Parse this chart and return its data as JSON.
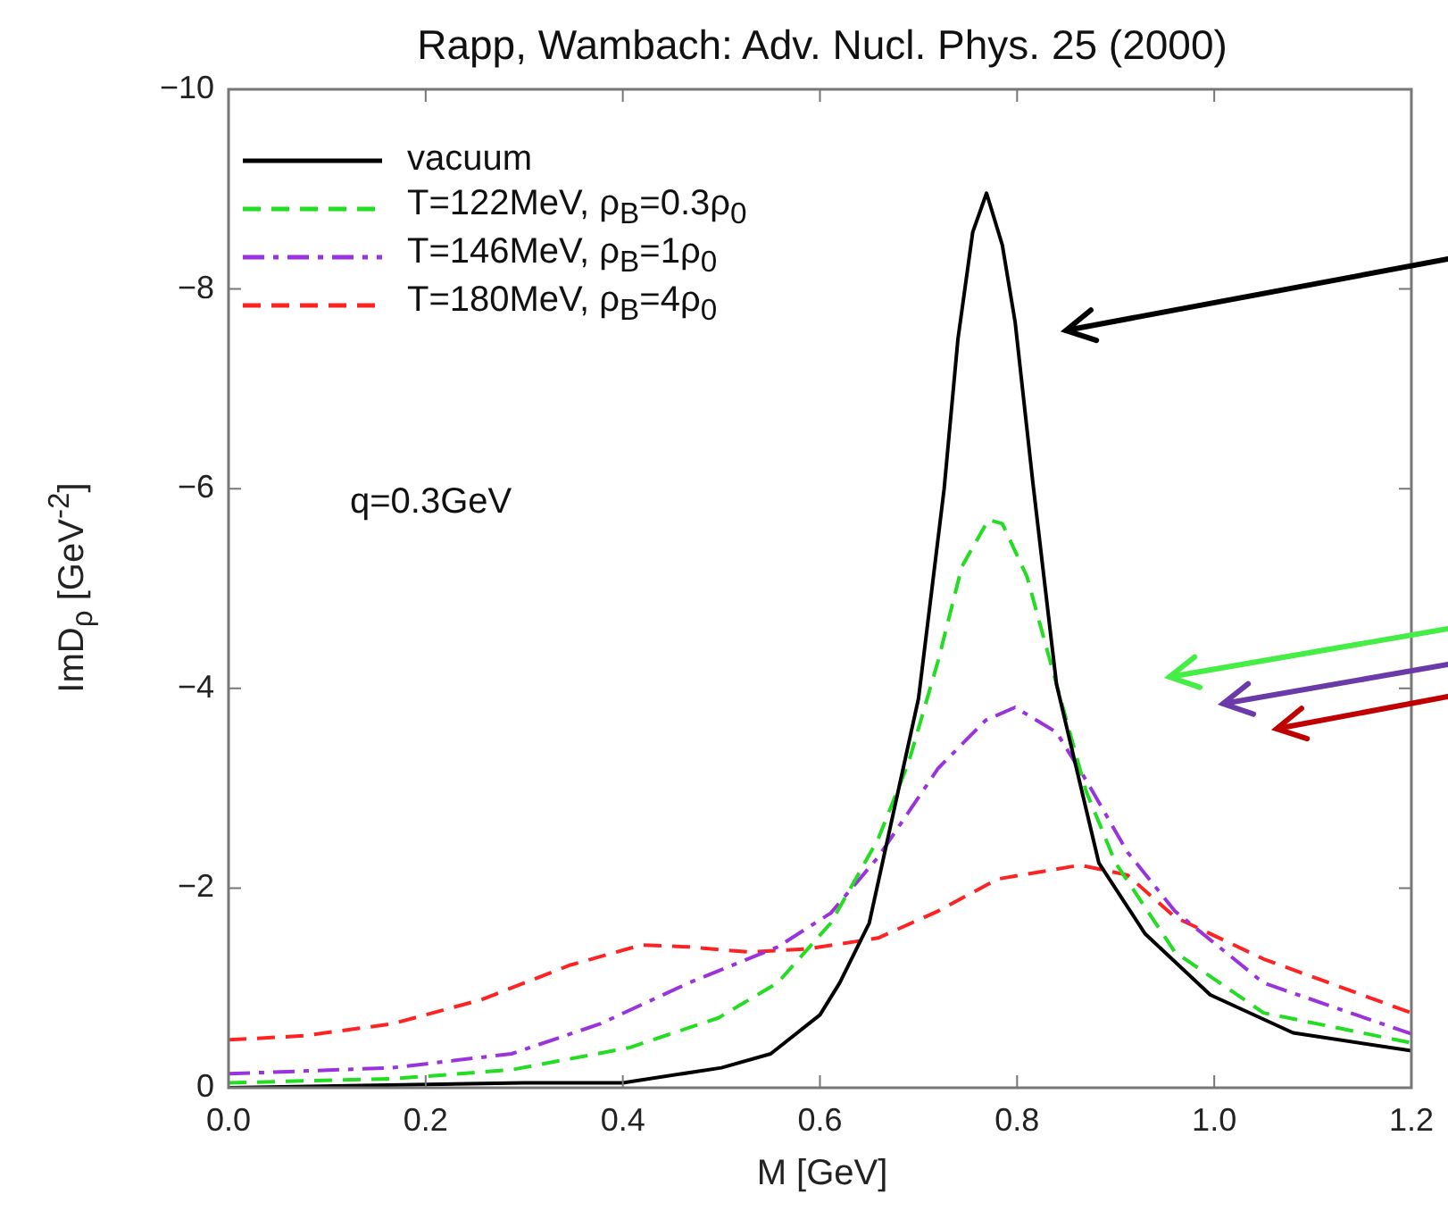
{
  "chart_data": {
    "type": "line",
    "title": "Rapp, Wambach: Adv. Nucl. Phys. 25 (2000)",
    "xlabel": "M [GeV]",
    "ylabel": "ImD$_{ρ}$  [GeV$^{-2}$]",
    "xlim": [
      0,
      1.2
    ],
    "xticks": [
      {
        "value": 0,
        "label": "0.0"
      },
      0.2,
      0.4,
      0.6,
      0.8,
      {
        "value": 1,
        "label": "1.0"
      },
      1.2
    ],
    "ylim": [
      0,
      -10
    ],
    "yticks": [
      0,
      {
        "value": -2,
        "label": "−2"
      },
      {
        "value": -4,
        "label": "−4"
      },
      {
        "value": -6,
        "label": "−6"
      },
      {
        "value": -8,
        "label": "−8"
      },
      {
        "value": -10,
        "label": "−10"
      }
    ],
    "grid": false,
    "legend": "top left",
    "marker": "none",
    "annotations": [
      "q=0.3GeV"
    ],
    "series": [
      {
        "name": "vacuum",
        "color": "#000000",
        "line_style": "solid",
        "x": [
          0,
          0.3,
          0.4,
          0.5,
          0.55,
          0.6,
          0.62,
          0.65,
          0.7,
          0.726,
          0.74,
          0.755,
          0.769,
          0.785,
          0.798,
          0.816,
          0.84,
          0.883,
          0.93,
          0.996,
          1.08,
          1.2
        ],
        "values": [
          0,
          -0.05,
          -0.05,
          -0.2,
          -0.34,
          -0.73,
          -1.05,
          -1.65,
          -3.9,
          -6.0,
          -7.5,
          -8.57,
          -8.96,
          -8.44,
          -7.67,
          -6.06,
          -4.04,
          -2.25,
          -1.54,
          -0.93,
          -0.55,
          -0.37
        ]
      },
      {
        "name": "T=122MeV, ρ$_{B}$=0.3ρ$_{0}$",
        "color": "#22dd22",
        "line_style": "dashed",
        "x": [
          0,
          0.166,
          0.287,
          0.406,
          0.497,
          0.557,
          0.611,
          0.659,
          0.69,
          0.72,
          0.744,
          0.771,
          0.785,
          0.81,
          0.84,
          0.87,
          0.9,
          0.96,
          1.05,
          1.2
        ],
        "values": [
          -0.05,
          -0.09,
          -0.18,
          -0.4,
          -0.7,
          -1.05,
          -1.65,
          -2.49,
          -3.26,
          -4.28,
          -5.22,
          -5.69,
          -5.65,
          -5.12,
          -4.04,
          -2.97,
          -2.25,
          -1.36,
          -0.75,
          -0.45
        ]
      },
      {
        "name": "T=146MeV, ρ$_{B}$=1ρ$_{0}$",
        "color": "#9933dd",
        "line_style": "dashdot",
        "x": [
          0,
          0.166,
          0.287,
          0.377,
          0.467,
          0.557,
          0.611,
          0.659,
          0.72,
          0.768,
          0.798,
          0.84,
          0.87,
          0.912,
          0.96,
          1.05,
          1.2
        ],
        "values": [
          -0.14,
          -0.2,
          -0.34,
          -0.64,
          -1.05,
          -1.41,
          -1.75,
          -2.31,
          -3.2,
          -3.68,
          -3.81,
          -3.56,
          -3.08,
          -2.36,
          -1.77,
          -1.05,
          -0.54
        ]
      },
      {
        "name": "T=180MeV, ρ$_{B}$=4ρ$_{0}$",
        "color": "#ff2222",
        "line_style": "dashed",
        "x": [
          0,
          0.076,
          0.166,
          0.256,
          0.347,
          0.419,
          0.467,
          0.527,
          0.587,
          0.659,
          0.72,
          0.78,
          0.864,
          0.912,
          0.96,
          1.05,
          1.2
        ],
        "values": [
          -0.48,
          -0.52,
          -0.64,
          -0.88,
          -1.23,
          -1.43,
          -1.41,
          -1.36,
          -1.39,
          -1.5,
          -1.77,
          -2.09,
          -2.23,
          -2.13,
          -1.71,
          -1.29,
          -0.75
        ]
      }
    ]
  }
}
